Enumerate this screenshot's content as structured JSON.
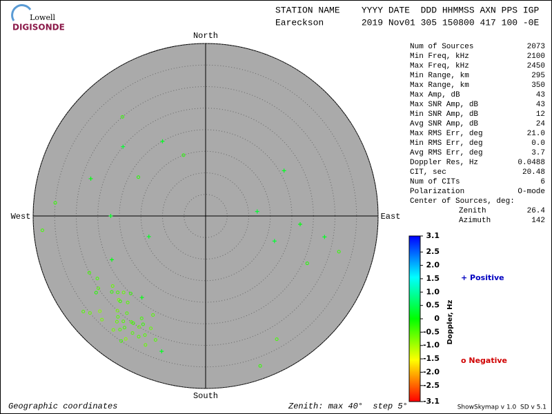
{
  "header": {
    "logo_top": "Lowell",
    "logo_bottom": "DIGISONDE",
    "line1": "STATION NAME    YYYY DATE  DDD HHMMSS AXN PPS IGP",
    "line2": "Eareckson       2019 Nov01 305 150800 417 100 -0E"
  },
  "chart_data": {
    "type": "polar-scatter",
    "directions": {
      "north": "North",
      "east": "East",
      "south": "South",
      "west": "West"
    },
    "rlim": [
      0,
      40
    ],
    "rticks": [
      5,
      10,
      15,
      20,
      25,
      30,
      35,
      40
    ],
    "background": "#aaaaaa",
    "points": {
      "zenith": [
        30,
        32,
        28,
        34,
        31,
        29,
        33,
        27,
        35,
        30,
        26,
        31,
        33,
        29,
        28,
        32,
        36,
        30,
        25,
        34,
        31,
        27,
        29,
        33,
        30,
        28,
        32,
        26,
        35,
        31,
        24,
        30,
        29,
        33,
        27,
        31,
        34,
        28,
        30,
        32,
        22,
        35,
        28,
        18,
        38,
        25,
        30,
        20,
        15,
        12,
        28,
        32,
        22,
        17,
        26,
        33,
        37,
        14,
        24,
        21
      ],
      "azimuth": [
        215,
        220,
        212,
        225,
        218,
        210,
        228,
        222,
        230,
        214,
        208,
        235,
        205,
        219,
        226,
        216,
        232,
        211,
        224,
        213,
        221,
        229,
        206,
        217,
        223,
        231,
        209,
        227,
        214,
        202,
        218,
        236,
        240,
        198,
        233,
        207,
        219,
        225,
        244,
        212,
        270,
        275,
        288,
        300,
        265,
        310,
        320,
        330,
        340,
        85,
        100,
        105,
        95,
        110,
        115,
        150,
        160,
        250,
        245,
        60
      ],
      "doppler": [
        -0.5,
        -0.6,
        -0.4,
        -0.7,
        -0.5,
        -0.3,
        -0.8,
        -0.5,
        -0.6,
        -0.4,
        -0.5,
        -0.2,
        -0.6,
        -0.5,
        -0.7,
        -0.4,
        -0.5,
        -0.6,
        -0.3,
        -0.8,
        -0.5,
        -0.4,
        -0.6,
        -0.5,
        -0.7,
        -0.3,
        -0.5,
        -0.6,
        -0.4,
        -0.5,
        0.1,
        -0.5,
        -0.4,
        0.2,
        -0.6,
        -0.5,
        -0.7,
        -0.3,
        -0.4,
        -0.5,
        0.2,
        -0.3,
        0.1,
        -0.2,
        -0.4,
        0.3,
        -0.3,
        0.2,
        -0.2,
        0.3,
        0.2,
        -0.3,
        0.1,
        0.3,
        -0.2,
        -0.4,
        -0.3,
        0.2,
        0.1,
        0.2
      ]
    },
    "colorbar": {
      "label": "Doppler, Hz",
      "lim": [
        -3.1,
        3.1
      ],
      "ticks": [
        3.1,
        2.5,
        {
          "value": 2,
          "label": "2.0"
        },
        1.5,
        {
          "value": 1,
          "label": "1.0"
        },
        0.5,
        0,
        -0.5,
        {
          "value": -1,
          "label": "-1.0"
        },
        -1.5,
        {
          "value": -2,
          "label": "-2.0"
        },
        -2.5,
        -3.1
      ]
    },
    "legend": {
      "positive": "+ Positive",
      "negative": "o Negative"
    }
  },
  "stats": [
    {
      "label": "Num of Sources",
      "value": "2073"
    },
    {
      "label": "Min Freq, kHz",
      "value": "2100"
    },
    {
      "label": "Max Freq, kHz",
      "value": "2450"
    },
    {
      "label": "Min Range, km",
      "value": "295"
    },
    {
      "label": "Max Range, km",
      "value": "350"
    },
    {
      "label": "Max Amp, dB",
      "value": "43"
    },
    {
      "label": "Max SNR Amp, dB",
      "value": "43"
    },
    {
      "label": "Min SNR Amp, dB",
      "value": "12"
    },
    {
      "label": "Avg SNR Amp, dB",
      "value": "24"
    },
    {
      "label": "Max RMS Err, deg",
      "value": "21.0"
    },
    {
      "label": "Min RMS Err, deg",
      "value": "0.0"
    },
    {
      "label": "Avg RMS Err, deg",
      "value": "3.7"
    },
    {
      "label": "Doppler Res, Hz",
      "value": "0.0488"
    },
    {
      "label": "CIT, sec",
      "value": "20.48"
    },
    {
      "label": "Num of CITs",
      "value": "6"
    },
    {
      "label": "Polarization",
      "value": "O-mode"
    },
    {
      "label": "Center of Sources, deg:"
    },
    {
      "label": "Zenith",
      "value": "26.4"
    },
    {
      "label": "Azimuth",
      "value": "142"
    }
  ],
  "footer": {
    "left": "Geographic coordinates",
    "middle": "Zenith: max 40°  step 5°",
    "right": "ShowSkymap v 1.0  SD v 5.1"
  }
}
